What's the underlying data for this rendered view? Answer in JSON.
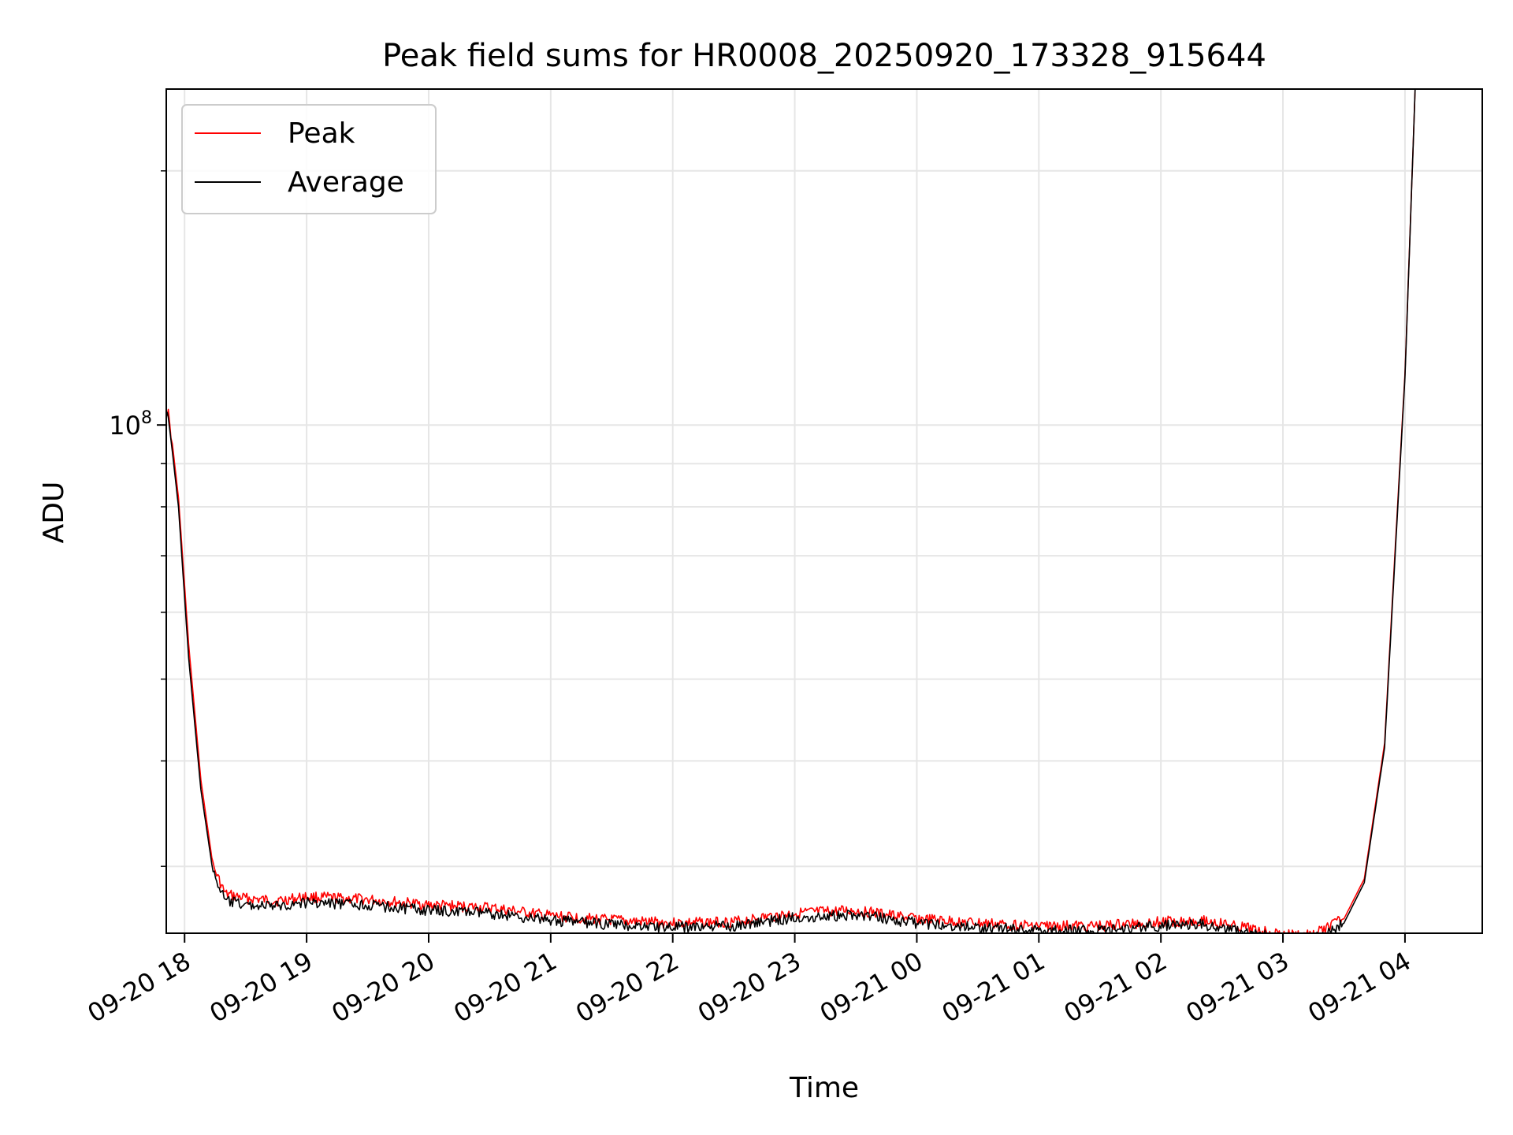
{
  "chart_data": {
    "type": "line",
    "title": "Peak field sums for HR0008_20250920_173328_915644",
    "xlabel": "Time",
    "ylabel": "ADU",
    "x_scale": "time",
    "y_scale": "log",
    "xlim": [
      "2025-09-20 17:51",
      "2025-09-21 04:38"
    ],
    "ylim": [
      25000000,
      250000000
    ],
    "grid": true,
    "legend_position": "top-left",
    "x_ticks": [
      {
        "value": "2025-09-20 18:00",
        "label": "09-20 18"
      },
      {
        "value": "2025-09-20 19:00",
        "label": "09-20 19"
      },
      {
        "value": "2025-09-20 20:00",
        "label": "09-20 20"
      },
      {
        "value": "2025-09-20 21:00",
        "label": "09-20 21"
      },
      {
        "value": "2025-09-20 22:00",
        "label": "09-20 22"
      },
      {
        "value": "2025-09-20 23:00",
        "label": "09-20 23"
      },
      {
        "value": "2025-09-21 00:00",
        "label": "09-21 00"
      },
      {
        "value": "2025-09-21 01:00",
        "label": "09-21 01"
      },
      {
        "value": "2025-09-21 02:00",
        "label": "09-21 02"
      },
      {
        "value": "2025-09-21 03:00",
        "label": "09-21 03"
      },
      {
        "value": "2025-09-21 04:00",
        "label": "09-21 04"
      }
    ],
    "y_major_ticks": [
      {
        "value": 100000000,
        "base": "10",
        "exponent": "8"
      }
    ],
    "y_minor_ticks": [
      30000000,
      40000000,
      50000000,
      60000000,
      70000000,
      80000000,
      90000000,
      200000000
    ],
    "series": [
      {
        "name": "Peak",
        "color": "#ff0000",
        "x": [
          "2025-09-20 17:51",
          "2025-09-20 17:52",
          "2025-09-20 17:54",
          "2025-09-20 17:57",
          "2025-09-20 18:02",
          "2025-09-20 18:08",
          "2025-09-20 18:14",
          "2025-09-20 18:20",
          "2025-09-20 18:30",
          "2025-09-20 18:45",
          "2025-09-20 19:00",
          "2025-09-20 19:30",
          "2025-09-20 20:00",
          "2025-09-20 20:30",
          "2025-09-20 21:00",
          "2025-09-20 21:30",
          "2025-09-20 22:00",
          "2025-09-20 22:30",
          "2025-09-20 23:00",
          "2025-09-20 23:30",
          "2025-09-21 00:00",
          "2025-09-21 00:30",
          "2025-09-21 01:00",
          "2025-09-21 01:30",
          "2025-09-21 02:00",
          "2025-09-21 02:20",
          "2025-09-21 02:40",
          "2025-09-21 03:00",
          "2025-09-21 03:15",
          "2025-09-21 03:30",
          "2025-09-21 03:40",
          "2025-09-21 03:50",
          "2025-09-21 03:55",
          "2025-09-21 04:00",
          "2025-09-21 04:05"
        ],
        "y": [
          105000000,
          103000000,
          95000000,
          82000000,
          55000000,
          38000000,
          30000000,
          27800000,
          27500000,
          27300000,
          27600000,
          27400000,
          27000000,
          26800000,
          26200000,
          25900000,
          25700000,
          25800000,
          26400000,
          26600000,
          26000000,
          25700000,
          25500000,
          25500000,
          25800000,
          25900000,
          25400000,
          24900000,
          24900000,
          26000000,
          29000000,
          42000000,
          70000000,
          115000000,
          250000000
        ]
      },
      {
        "name": "Average",
        "color": "#000000",
        "x": [
          "2025-09-20 17:51",
          "2025-09-20 17:52",
          "2025-09-20 17:54",
          "2025-09-20 17:57",
          "2025-09-20 18:02",
          "2025-09-20 18:08",
          "2025-09-20 18:14",
          "2025-09-20 18:20",
          "2025-09-20 18:30",
          "2025-09-20 18:45",
          "2025-09-20 19:00",
          "2025-09-20 19:30",
          "2025-09-20 20:00",
          "2025-09-20 20:30",
          "2025-09-20 21:00",
          "2025-09-20 21:30",
          "2025-09-20 22:00",
          "2025-09-20 22:30",
          "2025-09-20 23:00",
          "2025-09-20 23:30",
          "2025-09-21 00:00",
          "2025-09-21 00:30",
          "2025-09-21 01:00",
          "2025-09-21 01:30",
          "2025-09-21 02:00",
          "2025-09-21 02:20",
          "2025-09-21 02:40",
          "2025-09-21 03:00",
          "2025-09-21 03:15",
          "2025-09-21 03:30",
          "2025-09-21 03:40",
          "2025-09-21 03:50",
          "2025-09-21 03:55",
          "2025-09-21 04:00",
          "2025-09-21 04:05"
        ],
        "y": [
          104000000,
          102000000,
          93000000,
          80000000,
          53000000,
          37000000,
          29500000,
          27300000,
          27000000,
          26900000,
          27200000,
          27000000,
          26600000,
          26400000,
          25900000,
          25600000,
          25400000,
          25500000,
          26100000,
          26300000,
          25700000,
          25400000,
          25200000,
          25200000,
          25500000,
          25600000,
          25100000,
          24600000,
          24600000,
          25700000,
          28700000,
          41500000,
          69000000,
          114000000,
          250000000
        ]
      }
    ]
  }
}
